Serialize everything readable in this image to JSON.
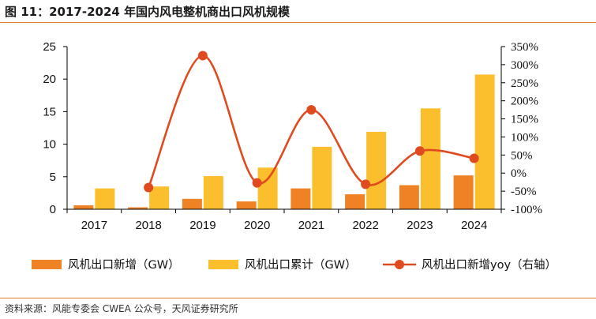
{
  "header": {
    "title": "图 11：2017-2024 年国内风电整机商出口风机规模"
  },
  "footer": {
    "source": "资料来源：风能专委会 CWEA 公众号，天风证券研究所"
  },
  "chart_data": {
    "type": "bar",
    "title": "",
    "categories": [
      "2017",
      "2018",
      "2019",
      "2020",
      "2021",
      "2022",
      "2023",
      "2024"
    ],
    "series": [
      {
        "name": "风机出口新增（GW）",
        "type": "bar",
        "axis": "left",
        "color": "#f08226",
        "values": [
          0.6,
          0.3,
          1.6,
          1.2,
          3.2,
          2.3,
          3.7,
          5.2
        ]
      },
      {
        "name": "风机出口累计（GW）",
        "type": "bar",
        "axis": "left",
        "color": "#fbbf2e",
        "values": [
          3.2,
          3.5,
          5.1,
          6.4,
          9.6,
          11.9,
          15.5,
          20.7
        ]
      },
      {
        "name": "风机出口新增yoy（右轴）",
        "type": "line",
        "axis": "right",
        "color": "#e04a1f",
        "values": [
          null,
          -40,
          325,
          -27,
          175,
          -31,
          61,
          41
        ]
      }
    ],
    "y_left": {
      "min": 0,
      "max": 25,
      "ticks": [
        0,
        5,
        10,
        15,
        20,
        25
      ]
    },
    "y_right": {
      "min": -100,
      "max": 350,
      "ticks": [
        "-100%",
        "-50%",
        "0%",
        "50%",
        "100%",
        "150%",
        "200%",
        "250%",
        "300%",
        "350%"
      ],
      "tick_values": [
        -100,
        -50,
        0,
        50,
        100,
        150,
        200,
        250,
        300,
        350
      ]
    },
    "grid": false,
    "legend_position": "bottom"
  }
}
